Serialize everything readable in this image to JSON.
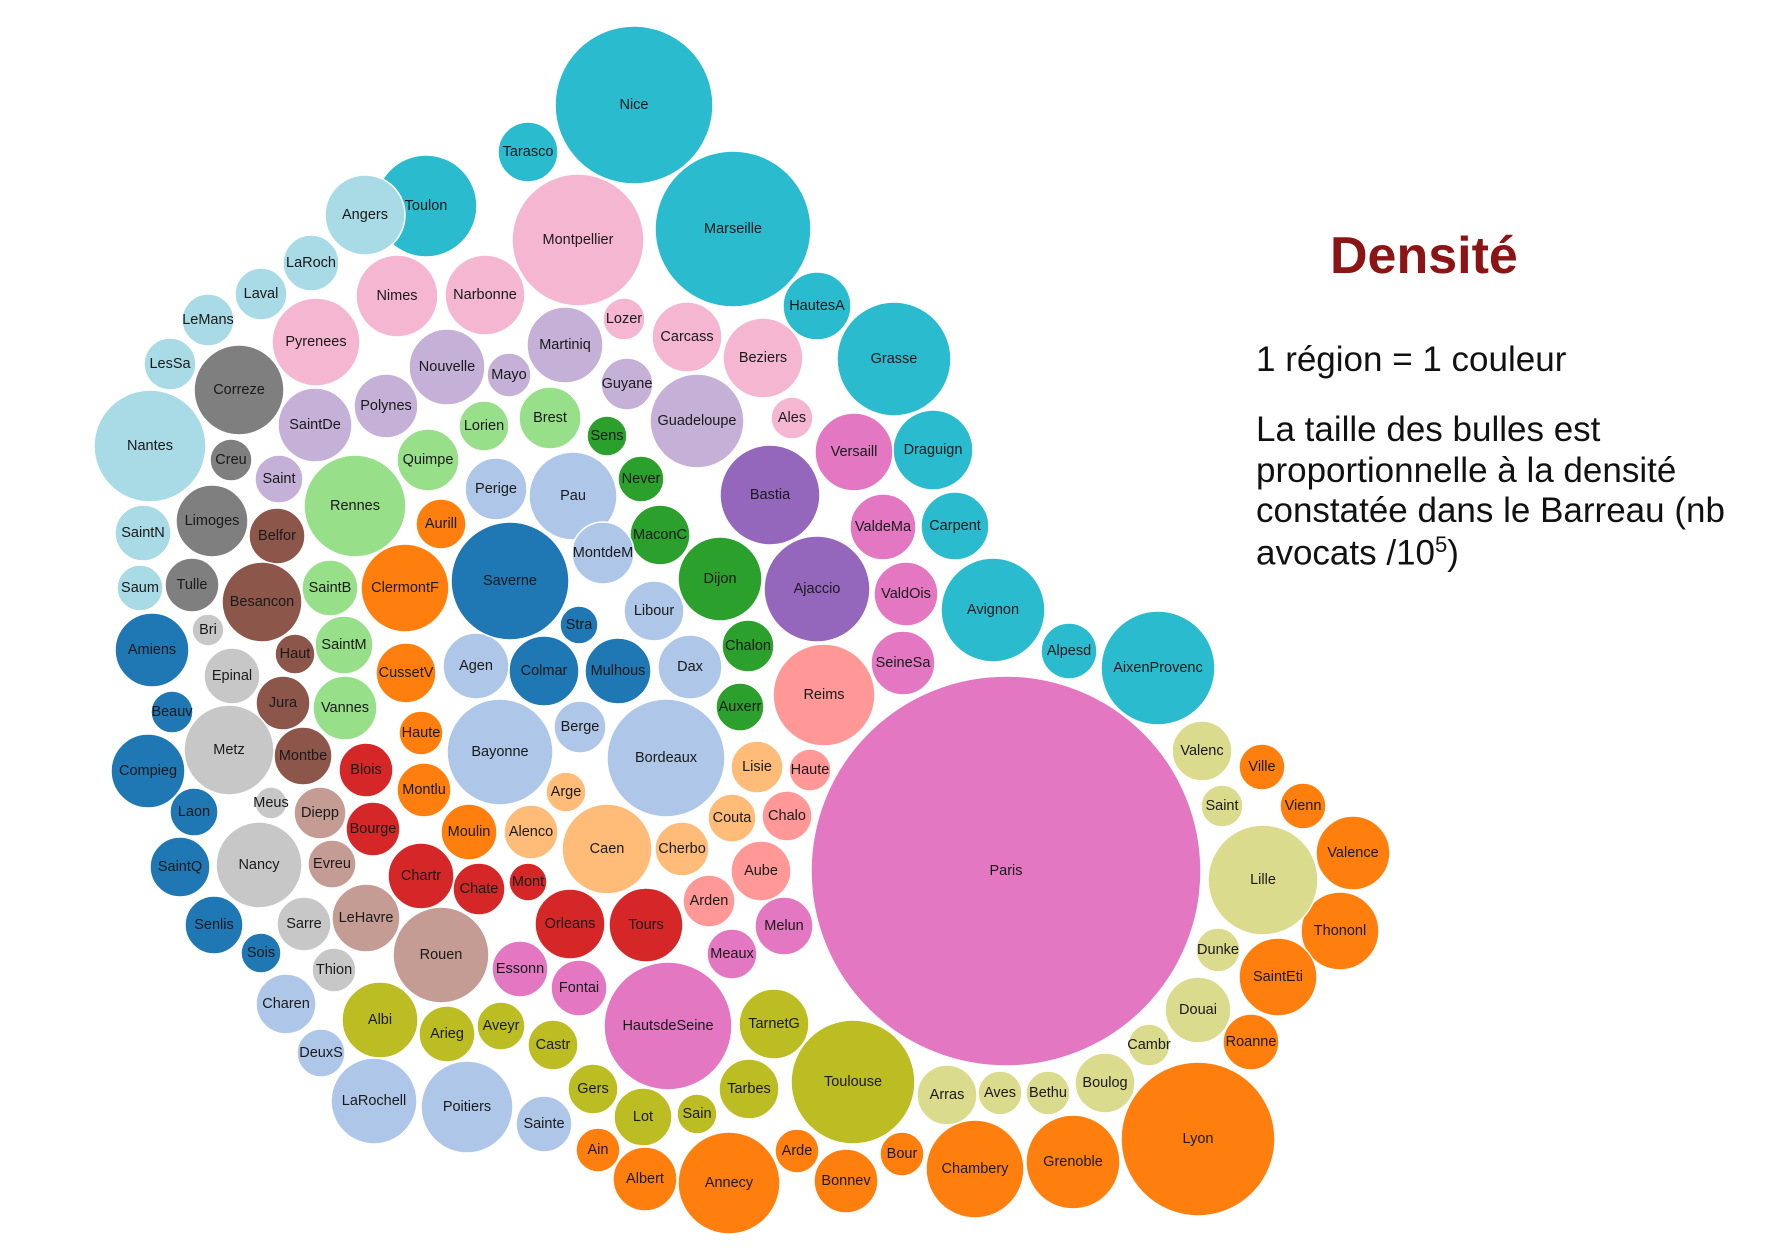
{
  "title": "Densité",
  "legend_line_1": "1 région = 1 couleur",
  "legend_line_2": "La taille des bulles est proportionnelle à la densité constatée dans le Barreau (nb avocats /10",
  "legend_sup": "5",
  "legend_close": ")",
  "chart_data": {
    "type": "bubble",
    "title": "Densité",
    "bubbles": [
      {
        "label": "Nice",
        "value": 81,
        "color": "#2bbbcf"
      },
      {
        "label": "Tarasco",
        "value": 17,
        "color": "#2bbbcf"
      },
      {
        "label": "Toulon",
        "value": 50,
        "color": "#2bbbcf"
      },
      {
        "label": "Marseille",
        "value": 94,
        "color": "#2bbbcf"
      },
      {
        "label": "HautesA",
        "value": 20,
        "color": "#2bbbcf"
      },
      {
        "label": "Grasse",
        "value": 61,
        "color": "#2bbbcf"
      },
      {
        "label": "Draguign",
        "value": 36,
        "color": "#2bbbcf"
      },
      {
        "label": "Carpent",
        "value": 28,
        "color": "#2bbbcf"
      },
      {
        "label": "Avignon",
        "value": 52,
        "color": "#2bbbcf"
      },
      {
        "label": "Alpesd",
        "value": 16,
        "color": "#2bbbcf"
      },
      {
        "label": "AixenProvenc",
        "value": 67,
        "color": "#2bbbcf"
      },
      {
        "label": "Angers",
        "value": 34,
        "color": "#a8dbe6"
      },
      {
        "label": "LaRoch",
        "value": 17,
        "color": "#a8dbe6"
      },
      {
        "label": "Laval",
        "value": 14,
        "color": "#a8dbe6"
      },
      {
        "label": "LeMans",
        "value": 15,
        "color": "#a8dbe6"
      },
      {
        "label": "LesSa",
        "value": 15,
        "color": "#a8dbe6"
      },
      {
        "label": "Nantes",
        "value": 61,
        "color": "#a8dbe6"
      },
      {
        "label": "SaintN",
        "value": 18,
        "color": "#a8dbe6"
      },
      {
        "label": "Saum",
        "value": 12,
        "color": "#a8dbe6"
      },
      {
        "label": "Montpellier",
        "value": 85,
        "color": "#f5b6d1"
      },
      {
        "label": "Nimes",
        "value": 38,
        "color": "#f5b6d1"
      },
      {
        "label": "Narbonne",
        "value": 33,
        "color": "#f5b6d1"
      },
      {
        "label": "Pyrenees",
        "value": 40,
        "color": "#f5b6d1"
      },
      {
        "label": "Lozer",
        "value": 10,
        "color": "#f5b6d1"
      },
      {
        "label": "Carcass",
        "value": 28,
        "color": "#f5b6d1"
      },
      {
        "label": "Beziers",
        "value": 33,
        "color": "#f5b6d1"
      },
      {
        "label": "Ales",
        "value": 12,
        "color": "#f5b6d1"
      },
      {
        "label": "Martiniq",
        "value": 28,
        "color": "#c5b0d7"
      },
      {
        "label": "Nouvelle",
        "value": 28,
        "color": "#c5b0d7"
      },
      {
        "label": "Mayo",
        "value": 12,
        "color": "#c5b0d7"
      },
      {
        "label": "Guyane",
        "value": 18,
        "color": "#c5b0d7"
      },
      {
        "label": "Polynes",
        "value": 21,
        "color": "#c5b0d7"
      },
      {
        "label": "SaintDe",
        "value": 26,
        "color": "#c5b0d7"
      },
      {
        "label": "Saint",
        "value": 13,
        "color": "#c5b0d7"
      },
      {
        "label": "Guadeloupe",
        "value": 46,
        "color": "#c5b0d7"
      },
      {
        "label": "Correze",
        "value": 38,
        "color": "#7f7f7f"
      },
      {
        "label": "Creu",
        "value": 11,
        "color": "#7f7f7f"
      },
      {
        "label": "Limoges",
        "value": 28,
        "color": "#7f7f7f"
      },
      {
        "label": "Tulle",
        "value": 15,
        "color": "#7f7f7f"
      },
      {
        "label": "Lorien",
        "value": 16,
        "color": "#98df8a"
      },
      {
        "label": "Brest",
        "value": 23,
        "color": "#98df8a"
      },
      {
        "label": "Quimpe",
        "value": 21,
        "color": "#98df8a"
      },
      {
        "label": "Rennes",
        "value": 55,
        "color": "#98df8a"
      },
      {
        "label": "SaintB",
        "value": 16,
        "color": "#98df8a"
      },
      {
        "label": "SaintM",
        "value": 17,
        "color": "#98df8a"
      },
      {
        "label": "Vannes",
        "value": 22,
        "color": "#98df8a"
      },
      {
        "label": "Sens",
        "value": 10,
        "color": "#2ca02c"
      },
      {
        "label": "Never",
        "value": 13,
        "color": "#2ca02c"
      },
      {
        "label": "MaconC",
        "value": 18,
        "color": "#2ca02c"
      },
      {
        "label": "Dijon",
        "value": 37,
        "color": "#2ca02c"
      },
      {
        "label": "Chalon",
        "value": 20,
        "color": "#2ca02c"
      },
      {
        "label": "Auxerr",
        "value": 16,
        "color": "#2ca02c"
      },
      {
        "label": "Bastia",
        "value": 52,
        "color": "#9467bd"
      },
      {
        "label": "Ajaccio",
        "value": 55,
        "color": "#9467bd"
      },
      {
        "label": "Versaill",
        "value": 32,
        "color": "#e377c2"
      },
      {
        "label": "ValdeMa",
        "value": 24,
        "color": "#e377c2"
      },
      {
        "label": "ValdOis",
        "value": 22,
        "color": "#e377c2"
      },
      {
        "label": "SeineSa",
        "value": 22,
        "color": "#e377c2"
      },
      {
        "label": "Paris",
        "value": 800,
        "color": "#e377c2"
      },
      {
        "label": "Essonn",
        "value": 18,
        "color": "#e377c2"
      },
      {
        "label": "Fontai",
        "value": 18,
        "color": "#e377c2"
      },
      {
        "label": "HautsdeSeine",
        "value": 89,
        "color": "#e377c2"
      },
      {
        "label": "Meaux",
        "value": 15,
        "color": "#e377c2"
      },
      {
        "label": "Melun",
        "value": 19,
        "color": "#e377c2"
      },
      {
        "label": "Perige",
        "value": 22,
        "color": "#aec7e8"
      },
      {
        "label": "Pau",
        "value": 40,
        "color": "#aec7e8"
      },
      {
        "label": "MontdeM",
        "value": 20,
        "color": "#aec7e8"
      },
      {
        "label": "Libour",
        "value": 21,
        "color": "#aec7e8"
      },
      {
        "label": "Dax",
        "value": 21,
        "color": "#aec7e8"
      },
      {
        "label": "Agen",
        "value": 21,
        "color": "#aec7e8"
      },
      {
        "label": "Berge",
        "value": 15,
        "color": "#aec7e8"
      },
      {
        "label": "Bayonne",
        "value": 57,
        "color": "#aec7e8"
      },
      {
        "label": "Bordeaux",
        "value": 73,
        "color": "#aec7e8"
      },
      {
        "label": "Charen",
        "value": 18,
        "color": "#aec7e8"
      },
      {
        "label": "DeuxS",
        "value": 15,
        "color": "#aec7e8"
      },
      {
        "label": "LaRochell",
        "value": 38,
        "color": "#aec7e8"
      },
      {
        "label": "Poitiers",
        "value": 45,
        "color": "#aec7e8"
      },
      {
        "label": "Sainte",
        "value": 17,
        "color": "#aec7e8"
      },
      {
        "label": "Saverne",
        "value": 73,
        "color": "#1f77b4"
      },
      {
        "label": "Stra",
        "value": 11,
        "color": "#1f77b4"
      },
      {
        "label": "Colmar",
        "value": 27,
        "color": "#1f77b4"
      },
      {
        "label": "Mulhous",
        "value": 25,
        "color": "#1f77b4"
      },
      {
        "label": "Amiens",
        "value": 30,
        "color": "#1f77b4"
      },
      {
        "label": "Beauv",
        "value": 13,
        "color": "#1f77b4"
      },
      {
        "label": "Compieg",
        "value": 28,
        "color": "#1f77b4"
      },
      {
        "label": "Laon",
        "value": 14,
        "color": "#1f77b4"
      },
      {
        "label": "SaintQ",
        "value": 20,
        "color": "#1f77b4"
      },
      {
        "label": "Senlis",
        "value": 18,
        "color": "#1f77b4"
      },
      {
        "label": "Sois",
        "value": 10,
        "color": "#1f77b4"
      },
      {
        "label": "Belfor",
        "value": 17,
        "color": "#8c564b"
      },
      {
        "label": "Besancon",
        "value": 32,
        "color": "#8c564b"
      },
      {
        "label": "Haut",
        "value": 10,
        "color": "#8c564b"
      },
      {
        "label": "Jura",
        "value": 17,
        "color": "#8c564b"
      },
      {
        "label": "Montbe",
        "value": 17,
        "color": "#8c564b"
      },
      {
        "label": "Bri",
        "value": 9,
        "color": "#c7c7c7"
      },
      {
        "label": "Epinal",
        "value": 20,
        "color": "#c7c7c7"
      },
      {
        "label": "Metz",
        "value": 44,
        "color": "#c7c7c7"
      },
      {
        "label": "Meus",
        "value": 10,
        "color": "#c7c7c7"
      },
      {
        "label": "Nancy",
        "value": 41,
        "color": "#c7c7c7"
      },
      {
        "label": "Sarre",
        "value": 17,
        "color": "#c7c7c7"
      },
      {
        "label": "Thion",
        "value": 14,
        "color": "#c7c7c7"
      },
      {
        "label": "Diepp",
        "value": 17,
        "color": "#c49c94"
      },
      {
        "label": "Evreu",
        "value": 15,
        "color": "#c49c94"
      },
      {
        "label": "LeHavre",
        "value": 25,
        "color": "#c49c94"
      },
      {
        "label": "Rouen",
        "value": 56,
        "color": "#c49c94"
      },
      {
        "label": "Aurill",
        "value": 15,
        "color": "#ff7f0e"
      },
      {
        "label": "ClermontF",
        "value": 43,
        "color": "#ff7f0e"
      },
      {
        "label": "CussetV",
        "value": 23,
        "color": "#ff7f0e"
      },
      {
        "label": "Haute",
        "value": 14,
        "color": "#ff7f0e"
      },
      {
        "label": "Montlu",
        "value": 16,
        "color": "#ff7f0e"
      },
      {
        "label": "Moulin",
        "value": 19,
        "color": "#ff7f0e"
      },
      {
        "label": "Valence",
        "value": 35,
        "color": "#ff7f0e"
      },
      {
        "label": "Ville",
        "value": 12,
        "color": "#ff7f0e"
      },
      {
        "label": "Vienn",
        "value": 13,
        "color": "#ff7f0e"
      },
      {
        "label": "Thononl",
        "value": 32,
        "color": "#ff7f0e"
      },
      {
        "label": "SaintEti",
        "value": 32,
        "color": "#ff7f0e"
      },
      {
        "label": "Roanne",
        "value": 17,
        "color": "#ff7f0e"
      },
      {
        "label": "Lyon",
        "value": 135,
        "color": "#ff7f0e"
      },
      {
        "label": "Grenoble",
        "value": 48,
        "color": "#ff7f0e"
      },
      {
        "label": "Chambery",
        "value": 54,
        "color": "#ff7f0e"
      },
      {
        "label": "Bour",
        "value": 12,
        "color": "#ff7f0e"
      },
      {
        "label": "Bonnev",
        "value": 21,
        "color": "#ff7f0e"
      },
      {
        "label": "Arde",
        "value": 13,
        "color": "#ff7f0e"
      },
      {
        "label": "Annecy",
        "value": 58,
        "color": "#ff7f0e"
      },
      {
        "label": "Albert",
        "value": 21,
        "color": "#ff7f0e"
      },
      {
        "label": "Ain",
        "value": 12,
        "color": "#ff7f0e"
      },
      {
        "label": "Blois",
        "value": 17,
        "color": "#d62728"
      },
      {
        "label": "Bourge",
        "value": 18,
        "color": "#d62728"
      },
      {
        "label": "Chartr",
        "value": 25,
        "color": "#d62728"
      },
      {
        "label": "Chate",
        "value": 17,
        "color": "#d62728"
      },
      {
        "label": "Mont",
        "value": 11,
        "color": "#d62728"
      },
      {
        "label": "Orleans",
        "value": 29,
        "color": "#d62728"
      },
      {
        "label": "Tours",
        "value": 33,
        "color": "#d62728"
      },
      {
        "label": "Alenco",
        "value": 19,
        "color": "#ffbb78"
      },
      {
        "label": "Arge",
        "value": 12,
        "color": "#ffbb78"
      },
      {
        "label": "Caen",
        "value": 46,
        "color": "#ffbb78"
      },
      {
        "label": "Cherbo",
        "value": 19,
        "color": "#ffbb78"
      },
      {
        "label": "Lisie",
        "value": 17,
        "color": "#ffbb78"
      },
      {
        "label": "Couta",
        "value": 17,
        "color": "#ffbb78"
      },
      {
        "label": "Reims",
        "value": 45,
        "color": "#ff9896"
      },
      {
        "label": "Haute",
        "value": 14,
        "color": "#ff9896"
      },
      {
        "label": "Chalo",
        "value": 16,
        "color": "#ff9896"
      },
      {
        "label": "Aube",
        "value": 21,
        "color": "#ff9896"
      },
      {
        "label": "Arden",
        "value": 17,
        "color": "#ff9896"
      },
      {
        "label": "Albi",
        "value": 29,
        "color": "#bcbd22"
      },
      {
        "label": "Arieg",
        "value": 17,
        "color": "#bcbd22"
      },
      {
        "label": "Aveyr",
        "value": 16,
        "color": "#bcbd22"
      },
      {
        "label": "Castr",
        "value": 17,
        "color": "#bcbd22"
      },
      {
        "label": "TarnetG",
        "value": 26,
        "color": "#bcbd22"
      },
      {
        "label": "Gers",
        "value": 16,
        "color": "#bcbd22"
      },
      {
        "label": "Tarbes",
        "value": 22,
        "color": "#bcbd22"
      },
      {
        "label": "Lot",
        "value": 18,
        "color": "#bcbd22"
      },
      {
        "label": "Sain",
        "value": 13,
        "color": "#bcbd22"
      },
      {
        "label": "Toulouse",
        "value": 83,
        "color": "#bcbd22"
      },
      {
        "label": "Valenc",
        "value": 19,
        "color": "#dbdb8d"
      },
      {
        "label": "Saint",
        "value": 13,
        "color": "#dbdb8d"
      },
      {
        "label": "Lille",
        "value": 64,
        "color": "#dbdb8d"
      },
      {
        "label": "Dunke",
        "value": 14,
        "color": "#dbdb8d"
      },
      {
        "label": "Douai",
        "value": 23,
        "color": "#dbdb8d"
      },
      {
        "label": "Cambr",
        "value": 12,
        "color": "#dbdb8d"
      },
      {
        "label": "Boulog",
        "value": 21,
        "color": "#dbdb8d"
      },
      {
        "label": "Bethu",
        "value": 14,
        "color": "#dbdb8d"
      },
      {
        "label": "Aves",
        "value": 13,
        "color": "#dbdb8d"
      },
      {
        "label": "Arras",
        "value": 21,
        "color": "#dbdb8d"
      }
    ]
  }
}
